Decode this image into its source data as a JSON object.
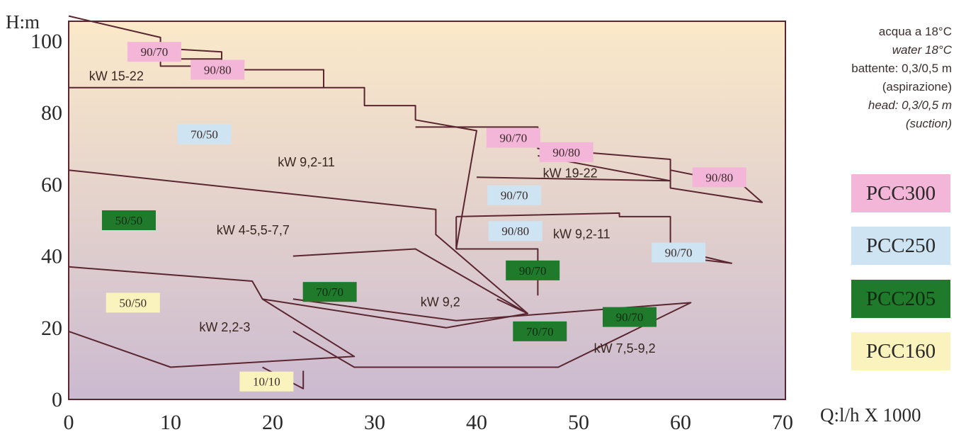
{
  "chart_data": {
    "type": "area",
    "xlabel": "Q:l/h X 1000",
    "ylabel": "H:m",
    "xlim": [
      0,
      70
    ],
    "ylim": [
      0,
      107
    ],
    "x_ticks": [
      "0",
      "10",
      "20",
      "30",
      "40",
      "50",
      "60",
      "70"
    ],
    "y_ticks": [
      "0",
      "20",
      "40",
      "60",
      "80",
      "100"
    ],
    "regions": [
      {
        "series": "PCC300",
        "pump": "90/70",
        "label": "kW 15-22",
        "points": [
          [
            0,
            107
          ],
          [
            9,
            101
          ],
          [
            9,
            93
          ],
          [
            15,
            93
          ],
          [
            15,
            95
          ],
          [
            9,
            95
          ]
        ]
      },
      {
        "series": "PCC300",
        "pump": "90/80",
        "points": [
          [
            9,
            98
          ],
          [
            15,
            97
          ],
          [
            15,
            92
          ],
          [
            25,
            92
          ],
          [
            25,
            87
          ]
        ]
      },
      {
        "series": "PCC250",
        "pump": "70/50",
        "label": "kW 9,2-11",
        "points": [
          [
            0,
            87
          ],
          [
            29,
            87
          ],
          [
            29,
            82
          ],
          [
            34,
            82
          ],
          [
            34,
            78
          ],
          [
            40,
            75
          ],
          [
            38,
            42
          ]
        ]
      },
      {
        "series": "PCC300",
        "pump": "90/70",
        "label": "kW 19-22",
        "points": [
          [
            34,
            76
          ],
          [
            46,
            76
          ],
          [
            46,
            70
          ],
          [
            59,
            67
          ],
          [
            59,
            59
          ],
          [
            68,
            55
          ],
          [
            66,
            60
          ],
          [
            59,
            64
          ]
        ]
      },
      {
        "series": "PCC300",
        "pump": "90/80",
        "points": [
          [
            40,
            62
          ],
          [
            59,
            61
          ],
          [
            46,
            68
          ]
        ]
      },
      {
        "series": "PCC250",
        "pump": "90/70",
        "points": [
          [
            38,
            51
          ],
          [
            54,
            52
          ],
          [
            54,
            51
          ],
          [
            59,
            51
          ],
          [
            59,
            42
          ],
          [
            65,
            38
          ],
          [
            59,
            40
          ]
        ]
      },
      {
        "series": "PCC250",
        "pump": "90/80",
        "label": "kW 9,2-11",
        "points": [
          [
            38,
            51
          ],
          [
            38,
            42
          ],
          [
            46,
            42
          ],
          [
            46,
            29
          ]
        ]
      },
      {
        "series": "PCC205",
        "pump": "50/50",
        "label": "kW 4-5,5-7,7",
        "points": [
          [
            0,
            64
          ],
          [
            36,
            53
          ],
          [
            36,
            46
          ],
          [
            45,
            24
          ],
          [
            42,
            28
          ]
        ]
      },
      {
        "series": "PCC205",
        "pump": "70/70",
        "label": "kW 9,2",
        "points": [
          [
            22,
            40
          ],
          [
            34,
            42
          ],
          [
            45,
            24
          ],
          [
            37,
            20
          ],
          [
            19,
            28
          ]
        ]
      },
      {
        "series": "PCC205",
        "pump": "90/70",
        "label": "kW 7,5-9,2",
        "points": [
          [
            22,
            28
          ],
          [
            38,
            22
          ],
          [
            61,
            27
          ],
          [
            48,
            9
          ],
          [
            28,
            9
          ],
          [
            22,
            19
          ]
        ]
      },
      {
        "series": "PCC160",
        "pump": "50/50",
        "label": "kW 2,2-3",
        "points": [
          [
            0,
            37
          ],
          [
            18,
            33
          ],
          [
            19,
            28
          ],
          [
            28,
            12
          ],
          [
            10,
            9
          ],
          [
            0,
            19
          ]
        ]
      },
      {
        "series": "PCC160",
        "pump": "10/10",
        "points": [
          [
            19,
            9
          ],
          [
            23,
            3
          ],
          [
            23,
            8
          ]
        ]
      }
    ]
  },
  "axis": {
    "y_unit": "H:m",
    "x_unit": "Q:l/h X 1000"
  },
  "notes": {
    "line1": "acqua a 18°C",
    "line2": "water 18°C",
    "line3": "battente: 0,3/0,5 m",
    "line4": "(aspirazione)",
    "line5": "head: 0,3/0,5 m",
    "line6": "(suction)"
  },
  "legend": [
    {
      "name": "PCC300",
      "color": "#f4b6d8"
    },
    {
      "name": "PCC250",
      "color": "#cfe4f3"
    },
    {
      "name": "PCC205",
      "color": "#1f7a2c"
    },
    {
      "name": "PCC160",
      "color": "#fbf3bd"
    }
  ],
  "labels": {
    "kw": [
      "kW 15-22",
      "kW 9,2-11",
      "kW 19-22",
      "kW 4-5,5-7,7",
      "kW 9,2-11",
      "kW 9,2",
      "kW 2,2-3",
      "kW 7,5-9,2"
    ],
    "tags": [
      {
        "text": "90/70",
        "series": "PCC300"
      },
      {
        "text": "90/80",
        "series": "PCC300"
      },
      {
        "text": "70/50",
        "series": "PCC250"
      },
      {
        "text": "90/70",
        "series": "PCC300"
      },
      {
        "text": "90/80",
        "series": "PCC300"
      },
      {
        "text": "90/80",
        "series": "PCC300"
      },
      {
        "text": "90/70",
        "series": "PCC250"
      },
      {
        "text": "50/50",
        "series": "PCC205"
      },
      {
        "text": "90/80",
        "series": "PCC250"
      },
      {
        "text": "90/70",
        "series": "PCC250"
      },
      {
        "text": "90/70",
        "series": "PCC205"
      },
      {
        "text": "70/70",
        "series": "PCC205"
      },
      {
        "text": "50/50",
        "series": "PCC160"
      },
      {
        "text": "90/70",
        "series": "PCC205"
      },
      {
        "text": "70/70",
        "series": "PCC205"
      },
      {
        "text": "10/10",
        "series": "PCC160"
      }
    ]
  },
  "colors": {
    "bg_top": "#fbe9c9",
    "bg_bottom": "#cbbad0",
    "line": "#5a2630",
    "dark_tag_text": "#0f2a10",
    "light_tag_text": "#3a2a2a"
  }
}
